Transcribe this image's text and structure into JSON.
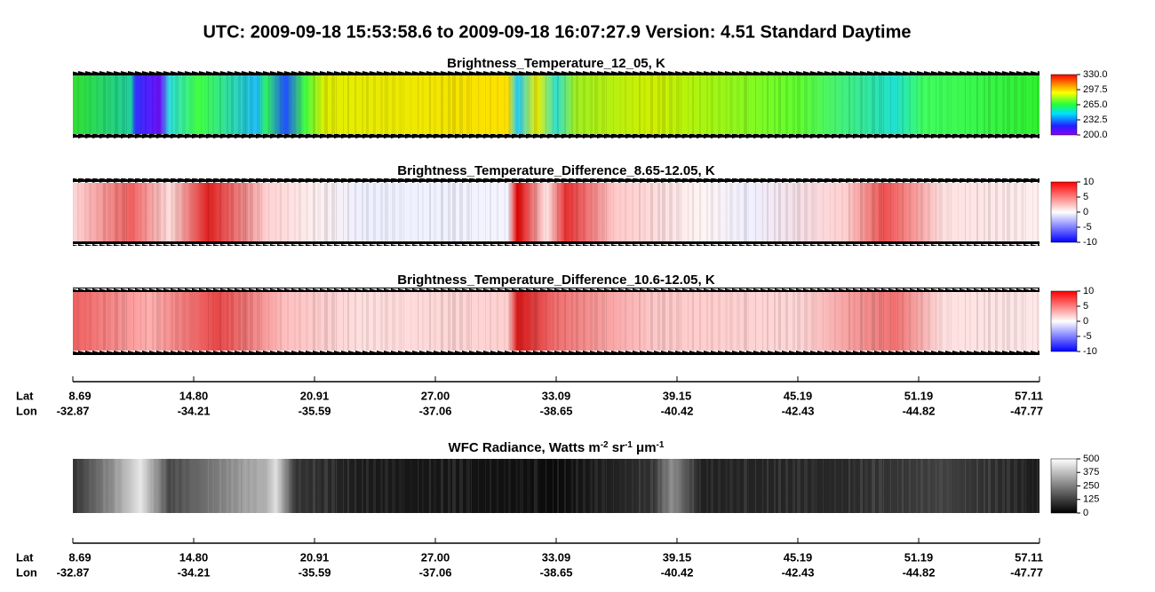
{
  "title": "UTC:  2009-09-18   15:53:58.6  to  2009-09-18   16:07:27.9    Version: 4.51  Standard Daytime",
  "panels": [
    {
      "title": "Brightness_Temperature_12_05, K",
      "colorbar": [
        "200.0",
        "232.5",
        "265.0",
        "297.5",
        "330.0"
      ]
    },
    {
      "title": "Brightness_Temperature_Difference_8.65-12.05, K",
      "colorbar": [
        "-10",
        "-5",
        "0",
        "5",
        "10"
      ]
    },
    {
      "title": "Brightness_Temperature_Difference_10.6-12.05, K",
      "colorbar": [
        "-10",
        "-5",
        "0",
        "5",
        "10"
      ]
    },
    {
      "title": [
        {
          "text": "WFC Radiance, Watts m",
          "sup": "-2"
        },
        {
          "text": " sr",
          "sup": "-1"
        },
        {
          "text": " μm",
          "sup": "-1"
        }
      ],
      "colorbar": [
        "0",
        "125",
        "250",
        "375",
        "500"
      ]
    }
  ],
  "axes": [
    {
      "lat_label": "Lat",
      "lon_label": "Lon",
      "lat": [
        "8.69",
        "14.80",
        "20.91",
        "27.00",
        "33.09",
        "39.15",
        "45.19",
        "51.19",
        "57.11"
      ],
      "lon": [
        "-32.87",
        "-34.21",
        "-35.59",
        "-37.06",
        "-38.65",
        "-40.42",
        "-42.43",
        "-44.82",
        "-47.77"
      ]
    },
    {
      "lat_label": "Lat",
      "lon_label": "Lon",
      "lat": [
        "8.69",
        "14.80",
        "20.91",
        "27.00",
        "33.09",
        "39.15",
        "45.19",
        "51.19",
        "57.11"
      ],
      "lon": [
        "-32.87",
        "-34.21",
        "-35.59",
        "-37.06",
        "-38.65",
        "-40.42",
        "-42.43",
        "-44.82",
        "-47.77"
      ]
    }
  ]
}
